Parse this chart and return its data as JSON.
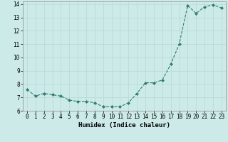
{
  "x": [
    0,
    1,
    2,
    3,
    4,
    5,
    6,
    7,
    8,
    9,
    10,
    11,
    12,
    13,
    14,
    15,
    16,
    17,
    18,
    19,
    20,
    21,
    22,
    23
  ],
  "y": [
    7.6,
    7.1,
    7.3,
    7.2,
    7.1,
    6.8,
    6.7,
    6.7,
    6.6,
    6.3,
    6.3,
    6.3,
    6.6,
    7.3,
    8.1,
    8.1,
    8.3,
    9.5,
    11.0,
    13.9,
    13.3,
    13.8,
    13.95,
    13.7
  ],
  "line_color": "#2e7d6e",
  "marker": "D",
  "markersize": 2.0,
  "linewidth": 0.8,
  "linestyle": "--",
  "xlabel": "Humidex (Indice chaleur)",
  "xlabel_fontsize": 6.5,
  "ylabel": "",
  "title": "",
  "xlim": [
    -0.5,
    23.5
  ],
  "ylim": [
    6.0,
    14.2
  ],
  "yticks": [
    6,
    7,
    8,
    9,
    10,
    11,
    12,
    13,
    14
  ],
  "xticks": [
    0,
    1,
    2,
    3,
    4,
    5,
    6,
    7,
    8,
    9,
    10,
    11,
    12,
    13,
    14,
    15,
    16,
    17,
    18,
    19,
    20,
    21,
    22,
    23
  ],
  "background_color": "#cceae8",
  "grid_color": "#b8d8d4",
  "tick_fontsize": 5.5,
  "font_family": "monospace"
}
